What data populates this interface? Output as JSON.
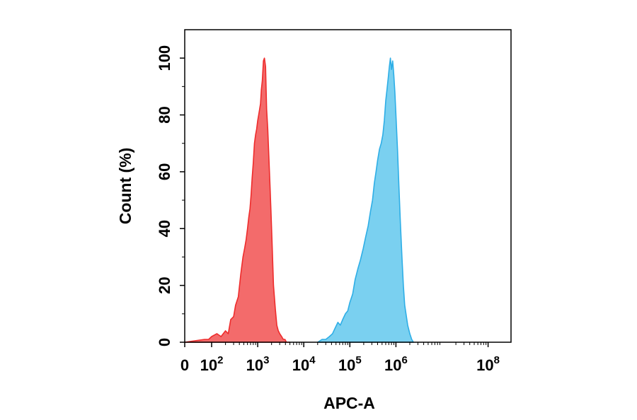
{
  "chart_data": {
    "type": "area",
    "xlabel": "APC-A",
    "ylabel": "Count (%)",
    "x_scale": "log",
    "xlim": [
      0,
      100000000
    ],
    "ylim": [
      0,
      110
    ],
    "grid": false,
    "legend": "none",
    "y_ticks": [
      {
        "value": 0,
        "label": "0"
      },
      {
        "value": 20,
        "label": "20"
      },
      {
        "value": 40,
        "label": "40"
      },
      {
        "value": 60,
        "label": "60"
      },
      {
        "value": 80,
        "label": "80"
      },
      {
        "value": 100,
        "label": "100"
      }
    ],
    "x_ticks": [
      {
        "value": 0,
        "base": "0",
        "exp": ""
      },
      {
        "value": 100,
        "base": "10",
        "exp": "2"
      },
      {
        "value": 1000,
        "base": "10",
        "exp": "3"
      },
      {
        "value": 10000,
        "base": "10",
        "exp": "4"
      },
      {
        "value": 100000,
        "base": "10",
        "exp": "5"
      },
      {
        "value": 1000000,
        "base": "10",
        "exp": "6"
      },
      {
        "value": 100000000,
        "base": "10",
        "exp": "8"
      }
    ],
    "series": [
      {
        "color": "#f36b6b",
        "stroke": "#ee2c2c",
        "x": [
          1,
          30,
          60,
          100,
          130,
          160,
          200,
          230,
          260,
          300,
          330,
          380,
          430,
          480,
          520,
          560,
          600,
          640,
          680,
          720,
          760,
          800,
          850,
          900,
          950,
          1000,
          1050,
          1100,
          1150,
          1200,
          1260,
          1330,
          1400,
          1480,
          1560,
          1650,
          1750,
          1850,
          1950,
          2050,
          2200,
          2400,
          2600,
          2800,
          3000,
          3300,
          3600,
          3900,
          4200,
          4600,
          5000
        ],
        "values": [
          0,
          1,
          1,
          2,
          3,
          2,
          4,
          3,
          8,
          9,
          13,
          16,
          24,
          30,
          33,
          36,
          40,
          44,
          47,
          52,
          58,
          63,
          70,
          73,
          75,
          78,
          80,
          82,
          84,
          89,
          92,
          99,
          100,
          97,
          82,
          75,
          65,
          55,
          45,
          35,
          20,
          12,
          6,
          4,
          3,
          2,
          1,
          1,
          0,
          0,
          0
        ]
      },
      {
        "color": "#7ad0f0",
        "stroke": "#2eaee6",
        "x": [
          20000,
          25000,
          30000,
          36000,
          42000,
          48000,
          55000,
          62000,
          70000,
          80000,
          90000,
          100000,
          115000,
          130000,
          150000,
          170000,
          195000,
          220000,
          250000,
          280000,
          310000,
          340000,
          370000,
          400000,
          440000,
          480000,
          520000,
          560000,
          600000,
          640000,
          680000,
          720000,
          760000,
          800000,
          850000,
          900000,
          950000,
          1000000,
          1080000,
          1160000,
          1250000,
          1350000,
          1450000,
          1550000,
          1650000,
          1800000,
          2000000,
          2200000,
          2400000
        ],
        "values": [
          0,
          1,
          1,
          2,
          3,
          5,
          7,
          6,
          8,
          10,
          11,
          14,
          17,
          22,
          26,
          29,
          33,
          37,
          41,
          46,
          50,
          56,
          60,
          64,
          68,
          70,
          73,
          78,
          85,
          89,
          93,
          97,
          100,
          96,
          99,
          94,
          88,
          80,
          68,
          55,
          42,
          30,
          20,
          13,
          10,
          6,
          3,
          1,
          0
        ]
      }
    ]
  }
}
